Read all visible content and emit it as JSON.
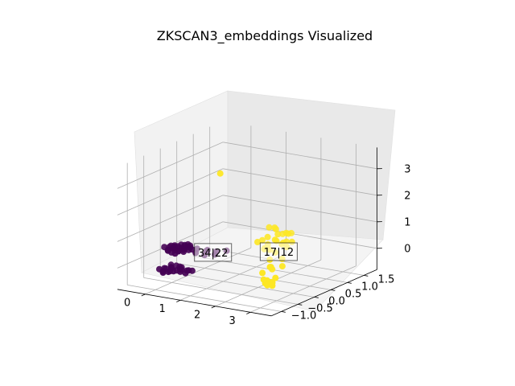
{
  "chart_data": {
    "type": "scatter3d",
    "title": "ZKSCAN3_embeddings Visualized",
    "xlabel": "",
    "ylabel": "",
    "zlabel": "",
    "x_ticks": [
      "0",
      "1",
      "2",
      "3"
    ],
    "y_ticks": [
      "−1.0",
      "−0.5",
      "0.0",
      "0.5",
      "1.0",
      "1.5"
    ],
    "z_ticks": [
      "0",
      "1",
      "2",
      "3"
    ],
    "xlim": [
      -0.8,
      3.6
    ],
    "ylim": [
      -1.3,
      1.9
    ],
    "zlim": [
      -0.8,
      3.8
    ],
    "grid": true,
    "colors": {
      "class_0": "#440154",
      "class_1": "#fde725"
    },
    "series": [
      {
        "points": [
          [
            -0.3,
            -0.1,
            0.25
          ],
          [
            -0.2,
            -0.2,
            0.28
          ],
          [
            -0.1,
            -0.15,
            0.3
          ],
          [
            -0.25,
            0.05,
            0.27
          ],
          [
            -0.15,
            -0.05,
            0.22
          ],
          [
            -0.05,
            -0.25,
            0.24
          ],
          [
            -0.35,
            -0.2,
            0.3
          ],
          [
            -0.2,
            0.1,
            0.2
          ],
          [
            0.0,
            -0.1,
            0.26
          ],
          [
            -0.1,
            0.0,
            0.32
          ],
          [
            -0.3,
            -0.3,
            0.25
          ],
          [
            0.05,
            -0.2,
            0.28
          ],
          [
            -0.15,
            -0.35,
            0.22
          ],
          [
            -0.25,
            -0.15,
            0.35
          ],
          [
            0.1,
            -0.05,
            0.3
          ],
          [
            -0.4,
            -0.1,
            0.28
          ],
          [
            -0.05,
            0.05,
            0.24
          ],
          [
            -0.2,
            -0.25,
            0.31
          ],
          [
            0.0,
            -0.3,
            0.27
          ],
          [
            -0.3,
            0.0,
            0.23
          ],
          [
            0.1,
            -0.25,
            0.25
          ],
          [
            -0.1,
            -0.3,
            0.29
          ],
          [
            -0.35,
            -0.05,
            0.22
          ],
          [
            0.05,
            0.0,
            0.33
          ],
          [
            -0.25,
            -0.35,
            0.26
          ],
          [
            0.15,
            -0.15,
            0.27
          ],
          [
            -0.45,
            -0.25,
            0.3
          ],
          [
            -0.15,
            0.15,
            0.25
          ],
          [
            0.0,
            -0.4,
            0.24
          ],
          [
            0.2,
            -0.1,
            0.28
          ],
          [
            0.4,
            -0.2,
            0.25
          ],
          [
            0.6,
            -0.1,
            0.3
          ],
          [
            0.8,
            0.0,
            0.28
          ],
          [
            0.5,
            0.05,
            0.24
          ],
          [
            1.0,
            0.1,
            0.3
          ],
          [
            0.7,
            -0.25,
            0.26
          ],
          [
            0.3,
            -0.05,
            0.3
          ],
          [
            0.9,
            -0.15,
            0.27
          ],
          [
            -0.3,
            -0.2,
            -0.45
          ],
          [
            -0.2,
            -0.3,
            -0.4
          ],
          [
            -0.1,
            -0.25,
            -0.5
          ],
          [
            -0.35,
            -0.35,
            -0.42
          ],
          [
            0.0,
            -0.2,
            -0.48
          ],
          [
            -0.25,
            -0.1,
            -0.44
          ],
          [
            -0.15,
            -0.4,
            -0.46
          ],
          [
            0.05,
            -0.3,
            -0.41
          ],
          [
            -0.4,
            -0.25,
            -0.5
          ],
          [
            -0.05,
            -0.15,
            -0.43
          ],
          [
            -0.3,
            -0.45,
            -0.47
          ],
          [
            0.1,
            -0.35,
            -0.45
          ],
          [
            -0.2,
            -0.05,
            -0.49
          ],
          [
            0.2,
            -0.25,
            -0.44
          ],
          [
            -0.45,
            -0.4,
            -0.45
          ],
          [
            0.0,
            -0.45,
            -0.4
          ],
          [
            0.15,
            -0.15,
            -0.5
          ],
          [
            -0.1,
            -0.5,
            -0.42
          ],
          [
            0.25,
            -0.35,
            -0.47
          ],
          [
            -0.35,
            -0.15,
            -0.4
          ],
          [
            0.3,
            -0.2,
            -0.45
          ],
          [
            -0.25,
            -0.5,
            -0.48
          ]
        ]
      },
      {
        "points": [
          [
            1.6,
            0.4,
            0.6
          ],
          [
            1.7,
            0.6,
            0.7
          ],
          [
            1.8,
            0.5,
            0.5
          ],
          [
            1.9,
            0.7,
            0.8
          ],
          [
            2.0,
            0.55,
            0.65
          ],
          [
            1.75,
            0.8,
            0.9
          ],
          [
            2.1,
            0.65,
            0.55
          ],
          [
            1.85,
            0.35,
            0.45
          ],
          [
            1.95,
            0.9,
            0.75
          ],
          [
            2.2,
            0.5,
            0.6
          ],
          [
            1.65,
            0.7,
            1.0
          ],
          [
            2.05,
            0.8,
            0.5
          ],
          [
            1.9,
            0.45,
            0.35
          ],
          [
            2.15,
            0.75,
            0.85
          ],
          [
            1.8,
            0.95,
            0.65
          ],
          [
            2.25,
            0.6,
            0.45
          ],
          [
            1.7,
            0.5,
            0.3
          ],
          [
            2.0,
            1.0,
            0.7
          ],
          [
            1.55,
            0.6,
            0.55
          ],
          [
            2.1,
            0.4,
            0.8
          ],
          [
            1.9,
            0.6,
            1.1
          ],
          [
            2.3,
            0.7,
            0.6
          ],
          [
            2.4,
            0.3,
            0.2
          ],
          [
            2.3,
            0.1,
            -0.1
          ],
          [
            2.4,
            -0.3,
            0.0
          ],
          [
            2.55,
            -0.2,
            0.2
          ],
          [
            2.5,
            0.2,
            0.0
          ],
          [
            2.2,
            0.3,
            0.4
          ],
          [
            3.1,
            -0.9,
            0.2
          ],
          [
            3.15,
            -0.8,
            0.1
          ],
          [
            3.2,
            -0.85,
            0.0
          ],
          [
            3.05,
            -0.95,
            0.25
          ],
          [
            3.25,
            -0.9,
            0.15
          ],
          [
            3.1,
            -0.75,
            -0.05
          ],
          [
            3.2,
            -1.0,
            0.1
          ],
          [
            3.0,
            -0.85,
            0.05
          ],
          [
            3.15,
            -0.7,
            0.2
          ],
          [
            2.9,
            -0.6,
            0.5
          ],
          [
            2.8,
            -0.5,
            0.7
          ],
          [
            1.1,
            -0.2,
            3.4
          ]
        ]
      }
    ],
    "annotations": [
      {
        "text": "34|22",
        "x": 0.8,
        "y": -0.1,
        "z": 0.3
      },
      {
        "text": "17|12",
        "x": 2.3,
        "y": 0.3,
        "z": 0.45
      }
    ]
  }
}
